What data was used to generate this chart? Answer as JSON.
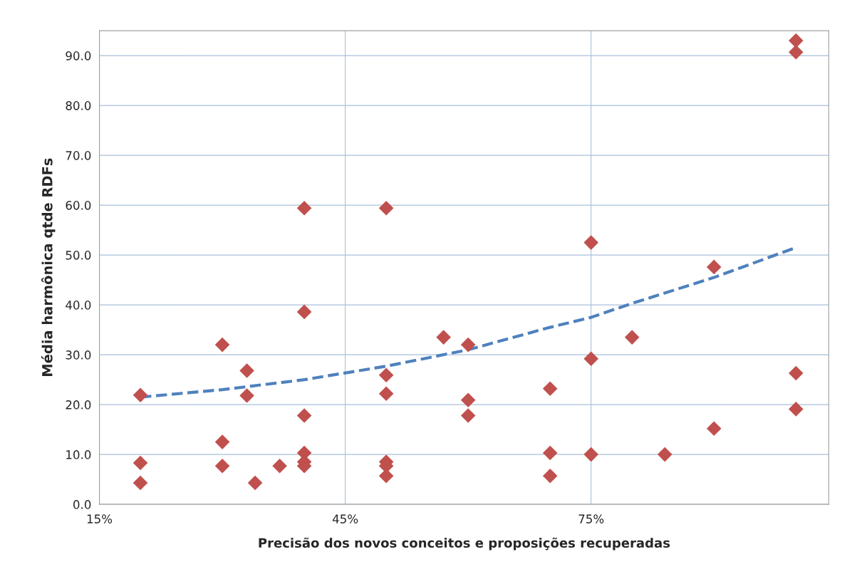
{
  "chart_data": {
    "type": "scatter",
    "xlabel": "Precisão dos novos conceitos e proposições recuperadas",
    "ylabel": "Média harmônica qtde RDFs",
    "xlim": [
      15,
      104
    ],
    "xticks": [
      {
        "value": 15,
        "label": "15%"
      },
      {
        "value": 45,
        "label": "45%"
      },
      {
        "value": 75,
        "label": "75%"
      }
    ],
    "ylim": [
      0,
      95
    ],
    "yticks": [
      {
        "value": 0,
        "label": "0.0"
      },
      {
        "value": 10,
        "label": "10.0"
      },
      {
        "value": 20,
        "label": "20.0"
      },
      {
        "value": 30,
        "label": "30.0"
      },
      {
        "value": 40,
        "label": "40.0"
      },
      {
        "value": 50,
        "label": "50.0"
      },
      {
        "value": 60,
        "label": "60.0"
      },
      {
        "value": 70,
        "label": "70.0"
      },
      {
        "value": 80,
        "label": "80.0"
      },
      {
        "value": 90,
        "label": "90.0"
      }
    ],
    "grid": true,
    "legend": false,
    "series": [
      {
        "color": "#c0504d",
        "marker": "diamond",
        "x": [
          20,
          20,
          20,
          30,
          30,
          30,
          33,
          33,
          34,
          37,
          40,
          40,
          40,
          40,
          40,
          40,
          50,
          50,
          50,
          50,
          50,
          50,
          57,
          60,
          60,
          60,
          70,
          70,
          70,
          75,
          75,
          75,
          80,
          84,
          90,
          90,
          100,
          100,
          100,
          100
        ],
        "values": [
          21.9,
          8.3,
          4.3,
          32.0,
          12.5,
          7.7,
          26.8,
          21.8,
          4.3,
          7.7,
          59.4,
          38.6,
          17.8,
          10.3,
          8.5,
          7.7,
          59.4,
          25.9,
          22.2,
          8.5,
          7.7,
          5.7,
          33.5,
          32.0,
          20.9,
          17.8,
          23.2,
          10.3,
          5.7,
          52.5,
          29.2,
          10.0,
          33.5,
          10.0,
          47.6,
          15.2,
          93.0,
          90.7,
          26.3,
          19.1
        ]
      },
      {
        "type": "line",
        "color": "#4f81bd",
        "line_style": "dashed",
        "marker": "none",
        "x": [
          20,
          30,
          40,
          50,
          60,
          70,
          75,
          80,
          90,
          100
        ],
        "values": [
          21.5,
          23.0,
          25.0,
          27.7,
          31.0,
          35.5,
          37.5,
          40.3,
          45.5,
          51.5
        ]
      }
    ]
  }
}
